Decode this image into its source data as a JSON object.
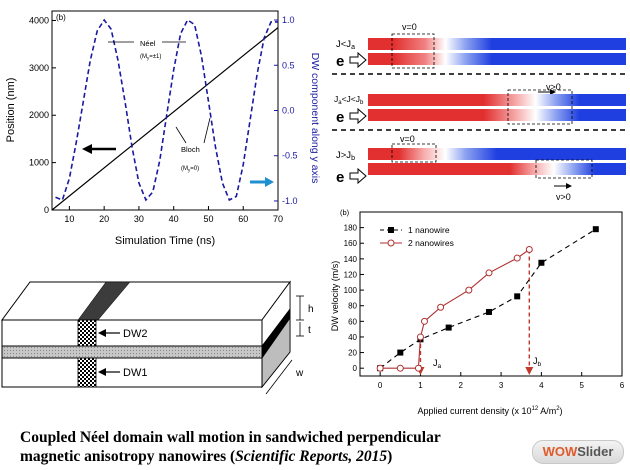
{
  "figures": {
    "position": {
      "panel": "(b)",
      "xlabel": "Simulation Time (ns)",
      "ylabel_left": "Position (nm)",
      "ylabel_right": "DW component along y axis",
      "annotations": {
        "neel": "Néel",
        "neel_sub": "(M",
        "neel_sub2": "=±1)",
        "bloch": "Bloch",
        "bloch_sub": "(M",
        "bloch_sub2": "=0)"
      }
    },
    "nanowires": {
      "rows": [
        {
          "label": "J<J",
          "label_sub": "a",
          "v": "v=0"
        },
        {
          "label": "J",
          "label_sub": "a",
          "label_mid": "<J<J",
          "label_sub2": "b",
          "v": "v>0"
        },
        {
          "label": "J>J",
          "label_sub": "b",
          "v_top": "v=0",
          "v": "v>0"
        }
      ],
      "e_label": "e"
    },
    "diagram": {
      "labels": {
        "dw2": "DW2",
        "dw1": "DW1",
        "h": "h",
        "t": "t",
        "w": "w"
      }
    },
    "velocity": {
      "panel": "(b)",
      "xlabel": "Applied current density (x 10",
      "xlabel_sup": "12",
      "xlabel_tail": " A/m",
      "xlabel_sup2": "2",
      "xlabel_end": ")",
      "ylabel": "DW velocity (m/s)",
      "ja": "J",
      "ja_sub": "a",
      "jb": "J",
      "jb_sub": "b"
    }
  },
  "chart_data": [
    {
      "type": "line",
      "xlabel": "Simulation Time (ns)",
      "ylabel": "Position (nm)",
      "y2label": "DW component along y axis",
      "xlim": [
        5,
        70
      ],
      "ylim": [
        0,
        4200
      ],
      "y2lim": [
        -1.1,
        1.1
      ],
      "xticks": [
        10,
        20,
        30,
        40,
        50,
        60,
        70
      ],
      "yticks": [
        0,
        1000,
        2000,
        3000,
        4000
      ],
      "y2ticks": [
        -1.0,
        -0.5,
        0.0,
        0.5,
        1.0
      ],
      "series": [
        {
          "x": [
            5,
            70
          ],
          "y": [
            0,
            3850
          ],
          "axis": "left",
          "color": "#000000",
          "style": "solid"
        },
        {
          "x": [
            6,
            8,
            10,
            12,
            14,
            16,
            18,
            20,
            22,
            24,
            26,
            28,
            30,
            32,
            34,
            36,
            38,
            40,
            42,
            44,
            46,
            48,
            50,
            52,
            54,
            56,
            58,
            60,
            62,
            64,
            66,
            68,
            70
          ],
          "y": [
            -0.96,
            -0.99,
            -0.75,
            -0.35,
            0.1,
            0.55,
            0.88,
            1.0,
            0.9,
            0.55,
            0.1,
            -0.4,
            -0.8,
            -0.99,
            -0.9,
            -0.55,
            -0.05,
            0.45,
            0.85,
            1.0,
            0.95,
            0.6,
            0.1,
            -0.4,
            -0.8,
            -0.99,
            -0.95,
            -0.6,
            -0.1,
            0.4,
            0.8,
            0.98,
            0.98
          ],
          "axis": "right",
          "color": "#1a1aa0",
          "style": "dashed"
        }
      ]
    },
    {
      "type": "line",
      "xlabel": "Applied current density (x 10^12 A/m^2)",
      "ylabel": "DW velocity (m/s)",
      "xlim": [
        -0.5,
        6
      ],
      "ylim": [
        -10,
        200
      ],
      "xticks": [
        0,
        1,
        2,
        3,
        4,
        5,
        6
      ],
      "yticks": [
        0,
        20,
        40,
        60,
        80,
        100,
        120,
        140,
        160,
        180
      ],
      "legend_position": "top-left",
      "series": [
        {
          "name": "1 nanowire",
          "x": [
            0,
            0.5,
            1.0,
            1.7,
            2.7,
            3.4,
            4.0,
            5.35
          ],
          "y": [
            0,
            20,
            37,
            52,
            72,
            92,
            135,
            178
          ],
          "color": "#000000",
          "marker": "square",
          "style": "dashed"
        },
        {
          "name": "2 nanowires",
          "x": [
            0,
            0.5,
            0.95,
            1.0,
            1.1,
            1.5,
            2.2,
            2.7,
            3.4,
            3.7
          ],
          "y": [
            0,
            0,
            0,
            40,
            60,
            78,
            100,
            122,
            141,
            152
          ],
          "color": "#b03030",
          "marker": "circle",
          "style": "solid"
        }
      ]
    }
  ],
  "caption": {
    "line1": "Coupled Néel domain wall motion in sandwiched perpendicular",
    "line2_a": "magnetic anisotropy nanowires (",
    "line2_b": "Scientific Reports, 2015",
    "line2_c": ")"
  },
  "badge": {
    "w1": "WOW",
    "w2": "Slider"
  }
}
